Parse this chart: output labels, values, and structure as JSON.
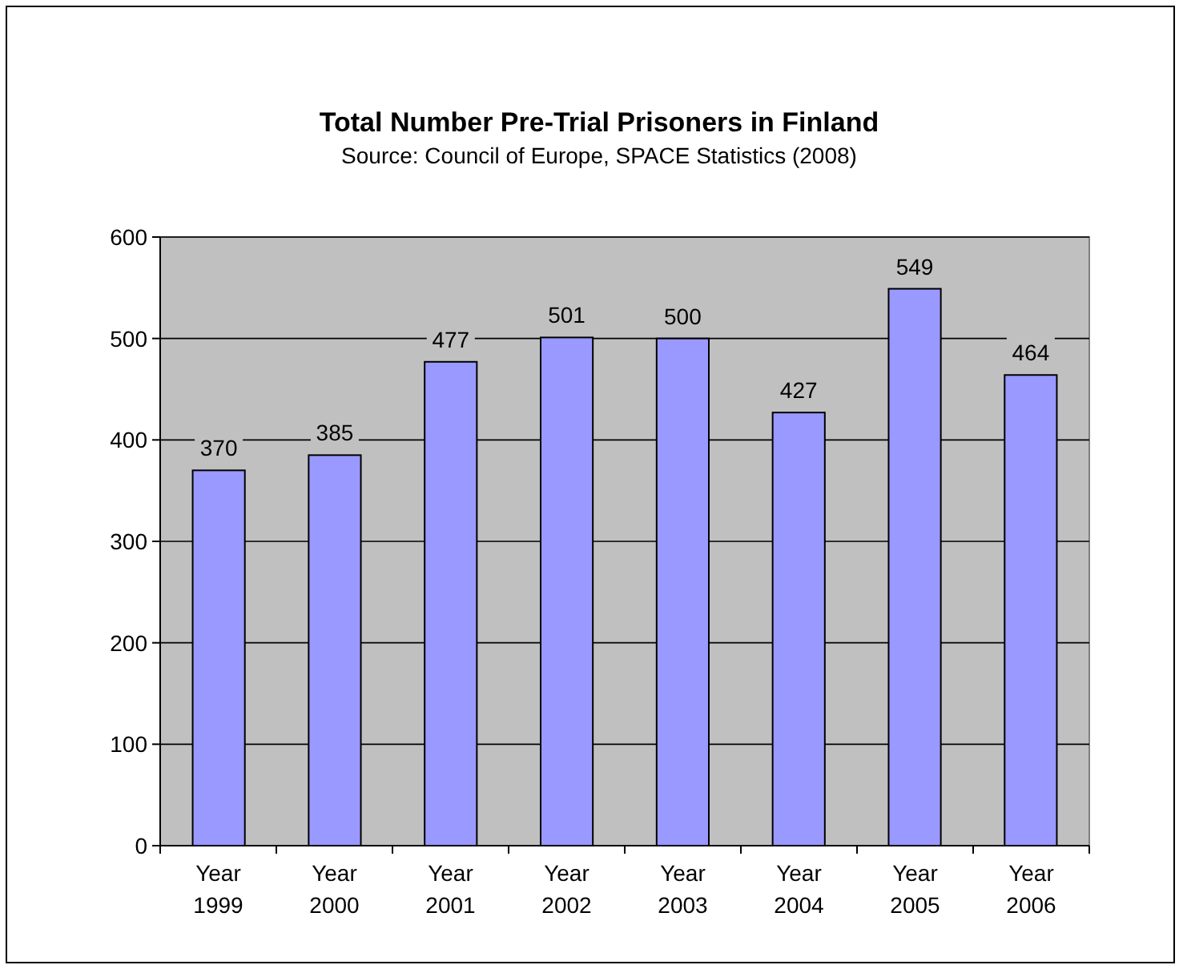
{
  "chart_data": {
    "type": "bar",
    "title": "Total Number Pre-Trial Prisoners in Finland",
    "subtitle": "Source: Council of Europe, SPACE Statistics (2008)",
    "categories": [
      "Year 1999",
      "Year 2000",
      "Year 2001",
      "Year 2002",
      "Year 2003",
      "Year 2004",
      "Year 2005",
      "Year 2006"
    ],
    "values": [
      370,
      385,
      477,
      501,
      500,
      427,
      549,
      464
    ],
    "color": "#9999ff",
    "ylim": [
      0,
      600
    ],
    "yticks": [
      0,
      100,
      200,
      300,
      400,
      500,
      600
    ],
    "grid": "y",
    "data_labels": true
  }
}
